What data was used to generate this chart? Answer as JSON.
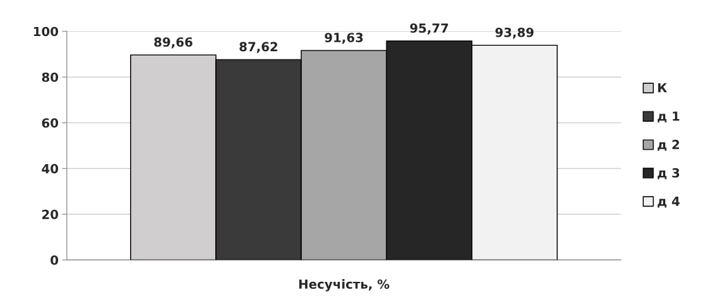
{
  "chart_data": {
    "type": "bar",
    "categories": [
      "Несучість, %"
    ],
    "series": [
      {
        "name": "К",
        "color": "#d0cece",
        "values": [
          89.66
        ],
        "value_labels": [
          "89,66"
        ]
      },
      {
        "name": "д 1",
        "color": "#3a3a3a",
        "values": [
          87.62
        ],
        "value_labels": [
          "87,62"
        ]
      },
      {
        "name": "д 2",
        "color": "#a6a6a6",
        "values": [
          91.63
        ],
        "value_labels": [
          "91,63"
        ]
      },
      {
        "name": "д 3",
        "color": "#262626",
        "values": [
          95.77
        ],
        "value_labels": [
          "95,77"
        ]
      },
      {
        "name": "д 4",
        "color": "#f2f2f2",
        "values": [
          93.89
        ],
        "value_labels": [
          "93,89"
        ]
      }
    ],
    "ylim": [
      0,
      100
    ],
    "yticks": [
      0,
      20,
      40,
      60,
      80,
      100
    ],
    "grid": "y",
    "legend": "right"
  }
}
